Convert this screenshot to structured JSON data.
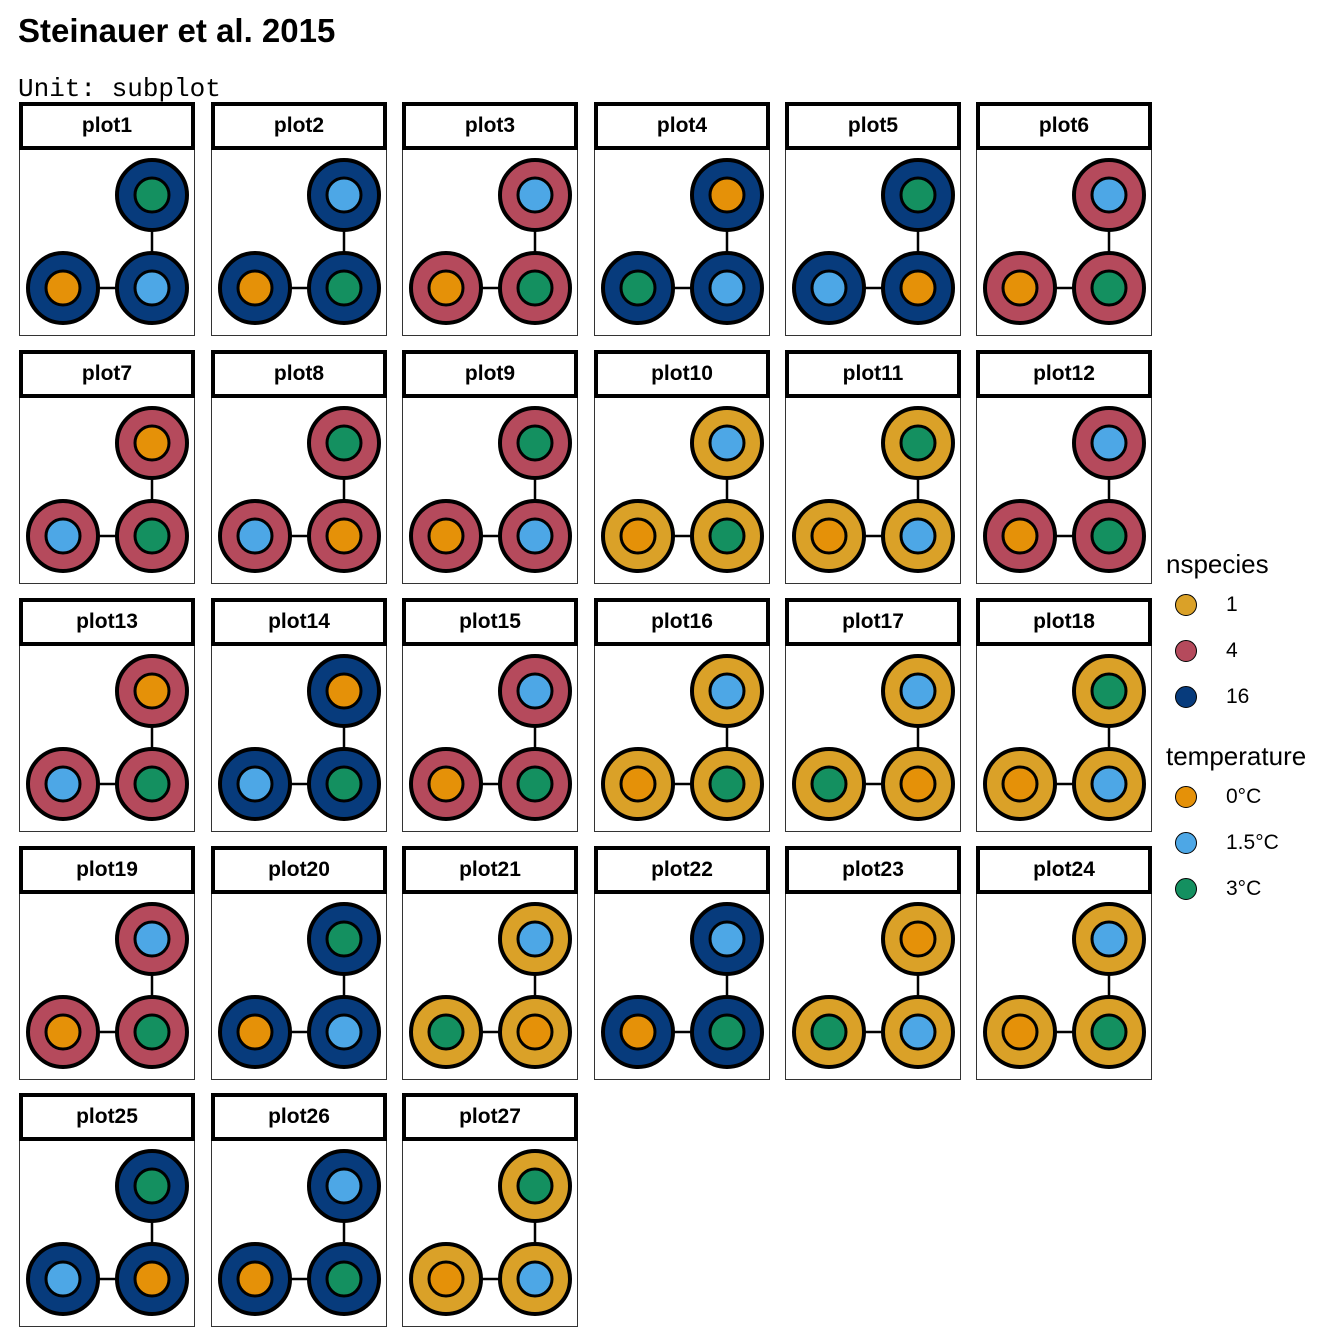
{
  "title": "Steinauer et al. 2015",
  "subtitle": "Unit: subplot",
  "colors": {
    "nspecies": {
      "1": "#DAA128",
      "4": "#B54A5C",
      "16": "#073B7C"
    },
    "temperature": {
      "0°C": "#E59108",
      "1.5°C": "#4DA7E6",
      "3°C": "#149060"
    }
  },
  "chart_data": {
    "type": "faceted-network",
    "description_fields": [
      "label",
      "nodes: [top, bottom-left, bottom-right] each {nspecies, temperature}"
    ],
    "panels": [
      {
        "label": "plot1",
        "nodes": [
          {
            "nspecies": "16",
            "temperature": "3°C"
          },
          {
            "nspecies": "16",
            "temperature": "0°C"
          },
          {
            "nspecies": "16",
            "temperature": "1.5°C"
          }
        ]
      },
      {
        "label": "plot2",
        "nodes": [
          {
            "nspecies": "16",
            "temperature": "1.5°C"
          },
          {
            "nspecies": "16",
            "temperature": "0°C"
          },
          {
            "nspecies": "16",
            "temperature": "3°C"
          }
        ]
      },
      {
        "label": "plot3",
        "nodes": [
          {
            "nspecies": "4",
            "temperature": "1.5°C"
          },
          {
            "nspecies": "4",
            "temperature": "0°C"
          },
          {
            "nspecies": "4",
            "temperature": "3°C"
          }
        ]
      },
      {
        "label": "plot4",
        "nodes": [
          {
            "nspecies": "16",
            "temperature": "0°C"
          },
          {
            "nspecies": "16",
            "temperature": "3°C"
          },
          {
            "nspecies": "16",
            "temperature": "1.5°C"
          }
        ]
      },
      {
        "label": "plot5",
        "nodes": [
          {
            "nspecies": "16",
            "temperature": "3°C"
          },
          {
            "nspecies": "16",
            "temperature": "1.5°C"
          },
          {
            "nspecies": "16",
            "temperature": "0°C"
          }
        ]
      },
      {
        "label": "plot6",
        "nodes": [
          {
            "nspecies": "4",
            "temperature": "1.5°C"
          },
          {
            "nspecies": "4",
            "temperature": "0°C"
          },
          {
            "nspecies": "4",
            "temperature": "3°C"
          }
        ]
      },
      {
        "label": "plot7",
        "nodes": [
          {
            "nspecies": "4",
            "temperature": "0°C"
          },
          {
            "nspecies": "4",
            "temperature": "1.5°C"
          },
          {
            "nspecies": "4",
            "temperature": "3°C"
          }
        ]
      },
      {
        "label": "plot8",
        "nodes": [
          {
            "nspecies": "4",
            "temperature": "3°C"
          },
          {
            "nspecies": "4",
            "temperature": "1.5°C"
          },
          {
            "nspecies": "4",
            "temperature": "0°C"
          }
        ]
      },
      {
        "label": "plot9",
        "nodes": [
          {
            "nspecies": "4",
            "temperature": "3°C"
          },
          {
            "nspecies": "4",
            "temperature": "0°C"
          },
          {
            "nspecies": "4",
            "temperature": "1.5°C"
          }
        ]
      },
      {
        "label": "plot10",
        "nodes": [
          {
            "nspecies": "1",
            "temperature": "1.5°C"
          },
          {
            "nspecies": "1",
            "temperature": "0°C"
          },
          {
            "nspecies": "1",
            "temperature": "3°C"
          }
        ]
      },
      {
        "label": "plot11",
        "nodes": [
          {
            "nspecies": "1",
            "temperature": "3°C"
          },
          {
            "nspecies": "1",
            "temperature": "0°C"
          },
          {
            "nspecies": "1",
            "temperature": "1.5°C"
          }
        ]
      },
      {
        "label": "plot12",
        "nodes": [
          {
            "nspecies": "4",
            "temperature": "1.5°C"
          },
          {
            "nspecies": "4",
            "temperature": "0°C"
          },
          {
            "nspecies": "4",
            "temperature": "3°C"
          }
        ]
      },
      {
        "label": "plot13",
        "nodes": [
          {
            "nspecies": "4",
            "temperature": "0°C"
          },
          {
            "nspecies": "4",
            "temperature": "1.5°C"
          },
          {
            "nspecies": "4",
            "temperature": "3°C"
          }
        ]
      },
      {
        "label": "plot14",
        "nodes": [
          {
            "nspecies": "16",
            "temperature": "0°C"
          },
          {
            "nspecies": "16",
            "temperature": "1.5°C"
          },
          {
            "nspecies": "16",
            "temperature": "3°C"
          }
        ]
      },
      {
        "label": "plot15",
        "nodes": [
          {
            "nspecies": "4",
            "temperature": "1.5°C"
          },
          {
            "nspecies": "4",
            "temperature": "0°C"
          },
          {
            "nspecies": "4",
            "temperature": "3°C"
          }
        ]
      },
      {
        "label": "plot16",
        "nodes": [
          {
            "nspecies": "1",
            "temperature": "1.5°C"
          },
          {
            "nspecies": "1",
            "temperature": "0°C"
          },
          {
            "nspecies": "1",
            "temperature": "3°C"
          }
        ]
      },
      {
        "label": "plot17",
        "nodes": [
          {
            "nspecies": "1",
            "temperature": "1.5°C"
          },
          {
            "nspecies": "1",
            "temperature": "3°C"
          },
          {
            "nspecies": "1",
            "temperature": "0°C"
          }
        ]
      },
      {
        "label": "plot18",
        "nodes": [
          {
            "nspecies": "1",
            "temperature": "3°C"
          },
          {
            "nspecies": "1",
            "temperature": "0°C"
          },
          {
            "nspecies": "1",
            "temperature": "1.5°C"
          }
        ]
      },
      {
        "label": "plot19",
        "nodes": [
          {
            "nspecies": "4",
            "temperature": "1.5°C"
          },
          {
            "nspecies": "4",
            "temperature": "0°C"
          },
          {
            "nspecies": "4",
            "temperature": "3°C"
          }
        ]
      },
      {
        "label": "plot20",
        "nodes": [
          {
            "nspecies": "16",
            "temperature": "3°C"
          },
          {
            "nspecies": "16",
            "temperature": "0°C"
          },
          {
            "nspecies": "16",
            "temperature": "1.5°C"
          }
        ]
      },
      {
        "label": "plot21",
        "nodes": [
          {
            "nspecies": "1",
            "temperature": "1.5°C"
          },
          {
            "nspecies": "1",
            "temperature": "3°C"
          },
          {
            "nspecies": "1",
            "temperature": "0°C"
          }
        ]
      },
      {
        "label": "plot22",
        "nodes": [
          {
            "nspecies": "16",
            "temperature": "1.5°C"
          },
          {
            "nspecies": "16",
            "temperature": "0°C"
          },
          {
            "nspecies": "16",
            "temperature": "3°C"
          }
        ]
      },
      {
        "label": "plot23",
        "nodes": [
          {
            "nspecies": "1",
            "temperature": "0°C"
          },
          {
            "nspecies": "1",
            "temperature": "3°C"
          },
          {
            "nspecies": "1",
            "temperature": "1.5°C"
          }
        ]
      },
      {
        "label": "plot24",
        "nodes": [
          {
            "nspecies": "1",
            "temperature": "1.5°C"
          },
          {
            "nspecies": "1",
            "temperature": "0°C"
          },
          {
            "nspecies": "1",
            "temperature": "3°C"
          }
        ]
      },
      {
        "label": "plot25",
        "nodes": [
          {
            "nspecies": "16",
            "temperature": "3°C"
          },
          {
            "nspecies": "16",
            "temperature": "1.5°C"
          },
          {
            "nspecies": "16",
            "temperature": "0°C"
          }
        ]
      },
      {
        "label": "plot26",
        "nodes": [
          {
            "nspecies": "16",
            "temperature": "1.5°C"
          },
          {
            "nspecies": "16",
            "temperature": "0°C"
          },
          {
            "nspecies": "16",
            "temperature": "3°C"
          }
        ]
      },
      {
        "label": "plot27",
        "nodes": [
          {
            "nspecies": "1",
            "temperature": "3°C"
          },
          {
            "nspecies": "1",
            "temperature": "0°C"
          },
          {
            "nspecies": "1",
            "temperature": "1.5°C"
          }
        ]
      }
    ],
    "legend": {
      "nspecies": {
        "title": "nspecies",
        "entries": [
          "1",
          "4",
          "16"
        ]
      },
      "temperature": {
        "title": "temperature",
        "entries": [
          "0°C",
          "1.5°C",
          "3°C"
        ]
      }
    }
  }
}
